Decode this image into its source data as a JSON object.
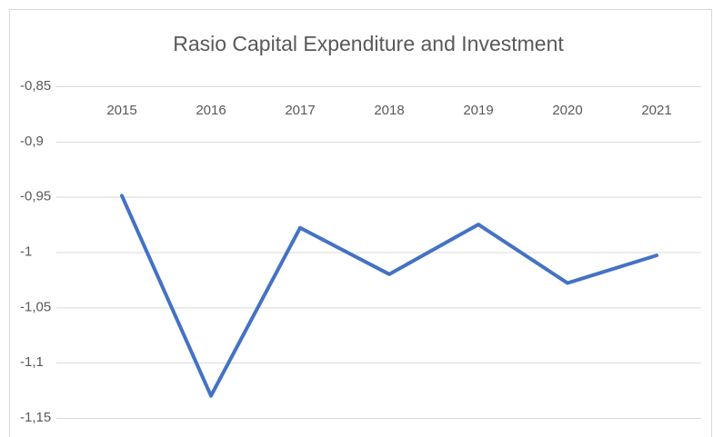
{
  "chart_data": {
    "type": "line",
    "title": "Rasio Capital Expenditure and Investment",
    "categories": [
      "2015",
      "2016",
      "2017",
      "2018",
      "2019",
      "2020",
      "2021"
    ],
    "series": [
      {
        "name": "Rasio Capital Expenditure and Investment",
        "color": "#4472c4",
        "values": [
          -0.949,
          -1.13,
          -0.978,
          -1.02,
          -0.975,
          -1.028,
          -1.003
        ]
      }
    ],
    "ylim": [
      -1.15,
      -0.85
    ],
    "yticks": [
      {
        "value": -1.15,
        "label": "-1,15"
      },
      {
        "value": -1.1,
        "label": "-1,1"
      },
      {
        "value": -1.05,
        "label": "-1,05"
      },
      -1,
      {
        "value": -0.95,
        "label": "-0,95"
      },
      {
        "value": -0.9,
        "label": "-0,9"
      },
      {
        "value": -0.85,
        "label": "-0,85"
      }
    ],
    "grid": true
  }
}
